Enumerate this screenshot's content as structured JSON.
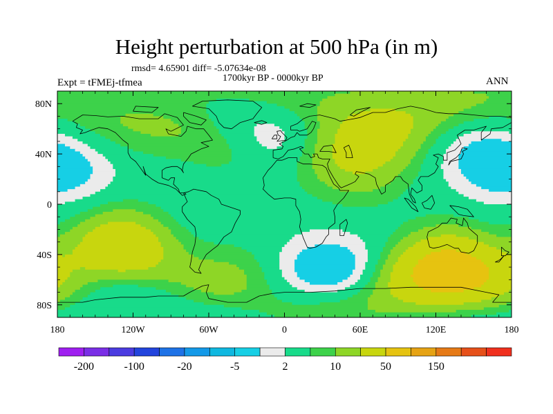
{
  "chart_data": {
    "type": "heatmap",
    "title": "Height perturbation at 500 hPa (in m)",
    "stats_text": "rmsd= 4.65901 diff= -5.07634e-08",
    "period_label": "1700kyr BP - 0000kyr BP",
    "left_label": "Expt = tFMEj-tfmea",
    "right_label": "ANN",
    "x_range": [
      -180,
      180
    ],
    "y_range": [
      -90,
      90
    ],
    "x_ticks": [
      {
        "value": -180,
        "label": "180"
      },
      {
        "value": -120,
        "label": "120W"
      },
      {
        "value": -60,
        "label": "60W"
      },
      {
        "value": 0,
        "label": "0"
      },
      {
        "value": 60,
        "label": "60E"
      },
      {
        "value": 120,
        "label": "120E"
      },
      {
        "value": 180,
        "label": "180"
      }
    ],
    "y_ticks": [
      {
        "value": 80,
        "label": "80N"
      },
      {
        "value": 40,
        "label": "40N"
      },
      {
        "value": 0,
        "label": "0"
      },
      {
        "value": -40,
        "label": "40S"
      },
      {
        "value": -80,
        "label": "80S"
      }
    ],
    "colorbar": {
      "colors": [
        "#9F1FF0",
        "#7A2EE6",
        "#4B3BE0",
        "#2244DD",
        "#1E72E6",
        "#1399E8",
        "#0FB8E0",
        "#16CFE5",
        "#EBEBEB",
        "#18DB8A",
        "#3DD24A",
        "#8ED626",
        "#C8D60E",
        "#E6C310",
        "#E6A314",
        "#E67A16",
        "#E6501A",
        "#F0301E"
      ],
      "labels": [
        "-200",
        "-100",
        "-20",
        "-5",
        "2",
        "10",
        "50",
        "150"
      ],
      "label_boundaries": [
        1,
        3,
        5,
        7,
        9,
        11,
        13,
        15
      ]
    },
    "anomaly_centers": [
      {
        "lon": -130,
        "lat": -37,
        "value": 20
      },
      {
        "lon": -45,
        "lat": -68,
        "value": 10
      },
      {
        "lon": 130,
        "lat": -55,
        "value": 30
      },
      {
        "lon": 75,
        "lat": 65,
        "value": 15
      },
      {
        "lon": 60,
        "lat": 32,
        "value": 8
      },
      {
        "lon": -150,
        "lat": 55,
        "value": 5
      },
      {
        "lon": -40,
        "lat": 48,
        "value": 8
      },
      {
        "lon": 20,
        "lat": 40,
        "value": 4
      },
      {
        "lon": -100,
        "lat": 65,
        "value": 3
      },
      {
        "lon": -10,
        "lat": 55,
        "value": -12
      },
      {
        "lon": 35,
        "lat": -55,
        "value": -10
      },
      {
        "lon": -155,
        "lat": -72,
        "value": -8
      },
      {
        "lon": 165,
        "lat": 35,
        "value": -8
      },
      {
        "lon": -160,
        "lat": 30,
        "value": -5
      },
      {
        "lon": -90,
        "lat": -72,
        "value": -5
      },
      {
        "lon": -60,
        "lat": 15,
        "value": -2
      },
      {
        "lon": 90,
        "lat": 65,
        "value": -3
      }
    ]
  }
}
